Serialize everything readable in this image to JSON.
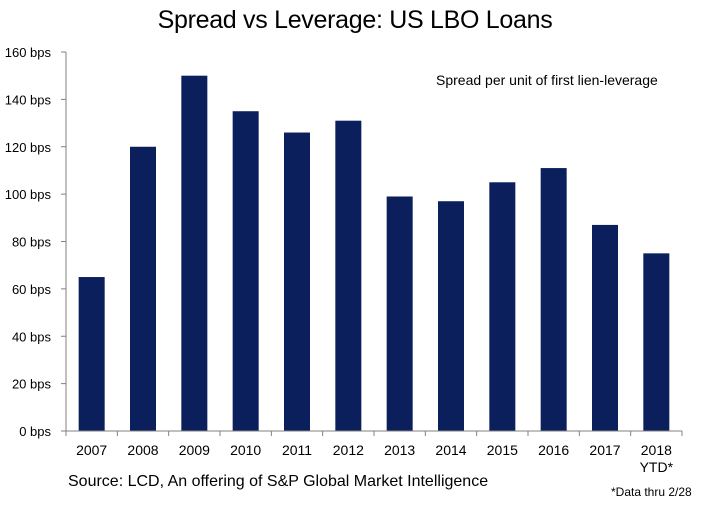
{
  "chart_data": {
    "type": "bar",
    "title": "Spread vs Leverage: US LBO Loans",
    "annotation": "Spread per unit of first lien-leverage",
    "categories": [
      "2007",
      "2008",
      "2009",
      "2010",
      "2011",
      "2012",
      "2013",
      "2014",
      "2015",
      "2016",
      "2017",
      "2018\nYTD*"
    ],
    "values": [
      65,
      120,
      150,
      135,
      126,
      131,
      99,
      97,
      105,
      111,
      87,
      75
    ],
    "ylim": [
      0,
      160
    ],
    "yticks": [
      "0 bps",
      "20 bps",
      "40 bps",
      "60 bps",
      "80 bps",
      "100 bps",
      "120 bps",
      "140 bps",
      "160 bps"
    ],
    "xlabel": "",
    "ylabel": "",
    "grid": false,
    "legend": "none",
    "bar_color": "#0b1f5c",
    "source": "Source: LCD, An offering of S&P Global Market Intelligence",
    "footnote": "*Data thru 2/28"
  }
}
